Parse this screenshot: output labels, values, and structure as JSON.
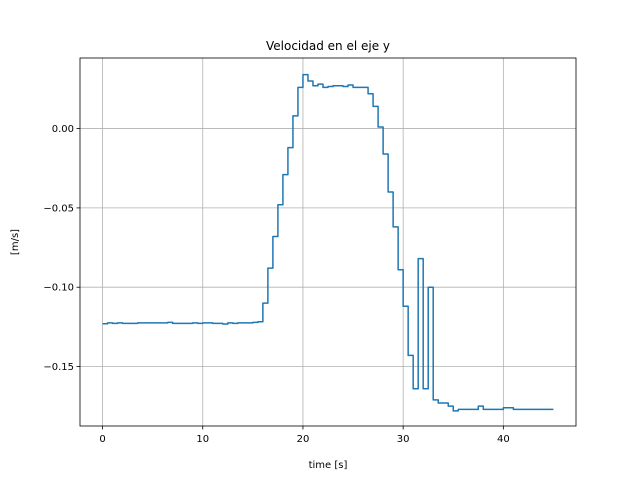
{
  "chart_data": {
    "type": "line",
    "title": "Velocidad en el eje y",
    "xlabel": "time [s]",
    "ylabel": "[m/s]",
    "xlim": [
      -2.25,
      47.25
    ],
    "ylim": [
      -0.1875,
      0.0445
    ],
    "xticks": [
      0,
      10,
      20,
      30,
      40
    ],
    "xtick_labels": [
      "0",
      "10",
      "20",
      "30",
      "40"
    ],
    "yticks": [
      0.0,
      -0.05,
      -0.1,
      -0.15
    ],
    "ytick_labels": [
      "0.00",
      "−0.05",
      "−0.10",
      "−0.15"
    ],
    "grid": true,
    "step": true,
    "series": [
      {
        "color": "#1f77b4",
        "x": [
          0,
          0.5,
          1.0,
          1.5,
          2.0,
          2.5,
          3.0,
          3.5,
          4.0,
          6.5,
          7.0,
          7.5,
          8.0,
          8.5,
          9.0,
          9.5,
          10.0,
          11.0,
          11.5,
          12.0,
          12.5,
          13.0,
          13.5,
          14.0,
          14.5,
          15.0,
          15.5,
          16.0,
          16.5,
          17.0,
          17.5,
          18.0,
          18.5,
          19.0,
          19.5,
          20.0,
          20.5,
          21.0,
          21.5,
          22.0,
          22.5,
          23.0,
          23.5,
          24.0,
          24.5,
          25.0,
          25.5,
          26.0,
          26.5,
          27.0,
          27.5,
          28.0,
          28.5,
          29.0,
          29.5,
          30.0,
          30.5,
          31.0,
          31.5,
          32.0,
          32.5,
          33.0,
          33.5,
          34.0,
          34.5,
          35.0,
          35.5,
          36.0,
          36.5,
          37.0,
          37.5,
          38.0,
          38.5,
          39.0,
          40.0,
          41.0,
          41.5,
          42.0,
          42.5,
          43.0,
          43.5,
          45.0
        ],
        "y": [
          -0.123,
          -0.1225,
          -0.1228,
          -0.1225,
          -0.1228,
          -0.1228,
          -0.1228,
          -0.1225,
          -0.1225,
          -0.1222,
          -0.1228,
          -0.1228,
          -0.1228,
          -0.1228,
          -0.1225,
          -0.1228,
          -0.1225,
          -0.1228,
          -0.1228,
          -0.1232,
          -0.1225,
          -0.1228,
          -0.1225,
          -0.1225,
          -0.1225,
          -0.1222,
          -0.1218,
          -0.11,
          -0.088,
          -0.068,
          -0.048,
          -0.029,
          -0.012,
          0.008,
          0.026,
          0.034,
          0.03,
          0.027,
          0.028,
          0.026,
          0.0265,
          0.027,
          0.027,
          0.0265,
          0.0275,
          0.026,
          0.026,
          0.026,
          0.022,
          0.014,
          0.001,
          -0.016,
          -0.04,
          -0.062,
          -0.089,
          -0.112,
          -0.143,
          -0.164,
          -0.082,
          -0.164,
          -0.1,
          -0.171,
          -0.173,
          -0.173,
          -0.175,
          -0.178,
          -0.177,
          -0.177,
          -0.177,
          -0.177,
          -0.175,
          -0.177,
          -0.177,
          -0.177,
          -0.176,
          -0.177,
          -0.177,
          -0.177,
          -0.177,
          -0.177,
          -0.177,
          -0.177
        ]
      }
    ]
  }
}
